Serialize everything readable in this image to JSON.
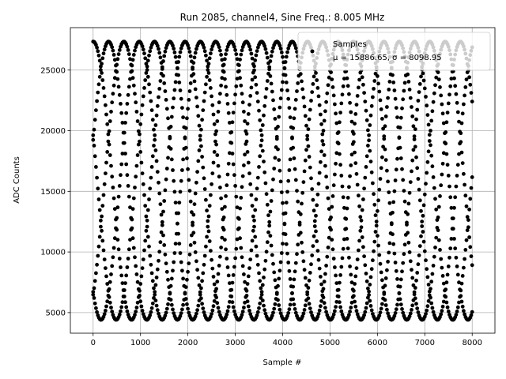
{
  "chart_data": {
    "type": "scatter",
    "title": "Run 2085, channel4, Sine Freq.: 8.005 MHz",
    "xlabel": "Sample #",
    "ylabel": "ADC Counts",
    "xlim": [
      -480,
      8480
    ],
    "ylim": [
      3300,
      28500
    ],
    "xticks": [
      0,
      1000,
      2000,
      3000,
      4000,
      5000,
      6000,
      7000,
      8000
    ],
    "yticks": [
      5000,
      10000,
      15000,
      20000,
      25000
    ],
    "grid": true,
    "legend": {
      "placement": "top-right",
      "entries": [
        {
          "label": "Samples",
          "stats": "μ = 15886.65, σ = 8098.95"
        }
      ]
    },
    "series": [
      {
        "name": "Samples",
        "color": "#000000",
        "marker": "point",
        "mean": 15886.65,
        "std": 8098.95,
        "sample_range": [
          0,
          8000
        ],
        "envelope_min": 4400,
        "envelope_max": 27350,
        "traces": [
          {
            "start_value": 25800,
            "peaks": [
              650,
              2270,
              3880,
              5490,
              7100
            ],
            "troughs": [
              1450,
              3070,
              4680,
              6290
            ]
          },
          {
            "start_value": 24300,
            "peaks": [
              2270,
              3880,
              5490,
              7100
            ],
            "troughs": [
              1450,
              3070,
              4680,
              6290
            ]
          },
          {
            "start_value": 13500,
            "peaks": [
              2270,
              3880,
              5490,
              7100
            ],
            "troughs": [
              1450,
              3070,
              4680,
              6290
            ]
          },
          {
            "start_value": 11100,
            "peaks": [
              2270,
              3880,
              5490,
              7100
            ],
            "troughs": [
              1450,
              3070,
              4680,
              6290
            ]
          },
          {
            "start_value": 4400,
            "peaks": [
              2270,
              3880,
              5490,
              7100
            ],
            "troughs": [
              1450,
              3070,
              4680,
              6290
            ]
          }
        ],
        "end_values": [
          24500,
          13500,
          11200,
          4500
        ]
      }
    ]
  }
}
